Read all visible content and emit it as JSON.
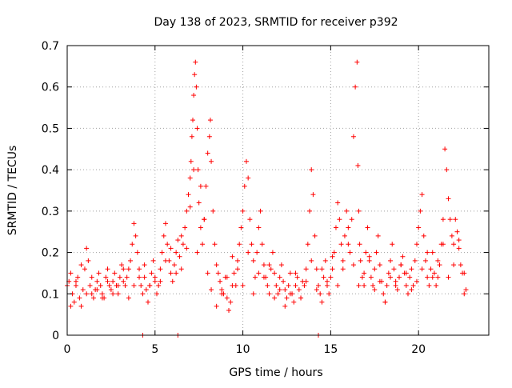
{
  "chart_data": {
    "type": "scatter",
    "title": "Day 138 of 2023, SRMTID for receiver p392",
    "xlabel": "GPS time / hours",
    "ylabel": "SRMTID / TECUs",
    "xlim": [
      0,
      24
    ],
    "ylim": [
      0,
      0.7
    ],
    "x_ticks": [
      0,
      5,
      10,
      15,
      20
    ],
    "y_ticks": [
      0,
      0.1,
      0.2,
      0.3,
      0.4,
      0.5,
      0.6,
      0.7
    ],
    "x_tick_labels": [
      "0",
      "5",
      "10",
      "15",
      "20"
    ],
    "y_tick_labels": [
      "0",
      "0.1",
      "0.2",
      "0.3",
      "0.4",
      "0.5",
      "0.6",
      "0.7"
    ],
    "grid": true,
    "marker": "+",
    "marker_color": "#ff0000",
    "series": [
      {
        "name": "SRMTID p392",
        "x": [
          0.0,
          0.1,
          0.2,
          0.3,
          0.4,
          0.5,
          0.6,
          0.7,
          0.8,
          0.9,
          1.0,
          1.1,
          1.2,
          1.3,
          1.4,
          1.5,
          1.6,
          1.7,
          1.8,
          1.9,
          2.0,
          2.1,
          2.2,
          2.3,
          2.4,
          2.5,
          2.6,
          2.7,
          2.8,
          2.9,
          3.0,
          3.1,
          3.2,
          3.3,
          3.4,
          3.5,
          3.6,
          3.7,
          3.8,
          3.9,
          4.0,
          4.1,
          4.2,
          4.3,
          4.4,
          4.5,
          4.6,
          4.7,
          4.8,
          4.9,
          5.0,
          5.1,
          5.2,
          5.3,
          5.4,
          5.5,
          5.6,
          5.7,
          5.8,
          5.9,
          6.0,
          6.1,
          6.2,
          6.3,
          6.4,
          6.5,
          6.6,
          6.7,
          6.8,
          6.9,
          7.0,
          7.05,
          7.1,
          7.15,
          7.2,
          7.25,
          7.3,
          7.35,
          7.4,
          7.45,
          7.5,
          7.6,
          7.7,
          7.8,
          7.9,
          8.0,
          8.1,
          8.15,
          8.2,
          8.3,
          8.4,
          8.5,
          8.6,
          8.7,
          8.8,
          8.9,
          9.0,
          9.1,
          9.2,
          9.3,
          9.4,
          9.5,
          9.6,
          9.7,
          9.8,
          9.9,
          10.0,
          10.1,
          10.2,
          10.3,
          10.4,
          10.5,
          10.6,
          10.7,
          10.8,
          10.9,
          11.0,
          11.1,
          11.2,
          11.3,
          11.4,
          11.5,
          11.6,
          11.7,
          11.8,
          11.9,
          12.0,
          12.1,
          12.2,
          12.3,
          12.4,
          12.5,
          12.6,
          12.7,
          12.8,
          12.9,
          13.0,
          13.1,
          13.2,
          13.3,
          13.4,
          13.5,
          13.6,
          13.7,
          13.8,
          13.9,
          14.0,
          14.1,
          14.2,
          14.3,
          14.4,
          14.5,
          14.6,
          14.7,
          14.8,
          14.9,
          15.0,
          15.1,
          15.2,
          15.3,
          15.4,
          15.5,
          15.6,
          15.7,
          15.8,
          15.9,
          16.0,
          16.1,
          16.2,
          16.3,
          16.4,
          16.5,
          16.55,
          16.6,
          16.65,
          16.7,
          16.8,
          16.9,
          17.0,
          17.1,
          17.2,
          17.3,
          17.4,
          17.5,
          17.6,
          17.7,
          17.8,
          17.9,
          18.0,
          18.1,
          18.2,
          18.3,
          18.4,
          18.5,
          18.6,
          18.7,
          18.8,
          18.9,
          19.0,
          19.1,
          19.2,
          19.3,
          19.4,
          19.5,
          19.6,
          19.7,
          19.8,
          19.9,
          20.0,
          20.1,
          20.2,
          20.3,
          20.4,
          20.5,
          20.6,
          20.7,
          20.8,
          20.9,
          21.0,
          21.1,
          21.2,
          21.3,
          21.4,
          21.5,
          21.6,
          21.7,
          21.8,
          21.9,
          22.0,
          22.1,
          22.2,
          22.3,
          22.4,
          22.5,
          22.6,
          22.7,
          0.2,
          0.5,
          0.8,
          1.1,
          1.4,
          1.7,
          2.0,
          2.3,
          2.6,
          2.9,
          3.2,
          3.5,
          3.8,
          4.1,
          4.4,
          4.7,
          5.0,
          5.3,
          5.6,
          5.9,
          6.2,
          6.5,
          6.8,
          7.0,
          7.2,
          7.4,
          7.6,
          7.8,
          8.0,
          8.2,
          8.5,
          8.8,
          9.1,
          9.4,
          9.7,
          10.0,
          10.3,
          10.6,
          10.9,
          11.2,
          11.5,
          11.8,
          12.1,
          12.4,
          12.7,
          13.0,
          13.3,
          13.6,
          13.9,
          14.2,
          14.5,
          14.8,
          15.1,
          15.4,
          15.7,
          16.0,
          16.3,
          16.6,
          16.9,
          17.2,
          17.5,
          17.8,
          18.1,
          18.4,
          18.7,
          19.0,
          19.3,
          19.6,
          19.9,
          20.2,
          20.5,
          20.8,
          21.1,
          21.4,
          21.7,
          22.0,
          22.3,
          22.6,
          4.3,
          6.3,
          14.3
        ],
        "y": [
          0.12,
          0.13,
          0.15,
          0.1,
          0.08,
          0.12,
          0.14,
          0.09,
          0.07,
          0.11,
          0.16,
          0.21,
          0.18,
          0.12,
          0.1,
          0.09,
          0.11,
          0.13,
          0.15,
          0.12,
          0.1,
          0.09,
          0.14,
          0.16,
          0.12,
          0.11,
          0.13,
          0.15,
          0.12,
          0.1,
          0.14,
          0.17,
          0.13,
          0.12,
          0.14,
          0.16,
          0.18,
          0.22,
          0.27,
          0.24,
          0.2,
          0.16,
          0.12,
          0.1,
          0.14,
          0.11,
          0.08,
          0.12,
          0.15,
          0.18,
          0.13,
          0.1,
          0.12,
          0.16,
          0.2,
          0.24,
          0.27,
          0.22,
          0.18,
          0.15,
          0.13,
          0.17,
          0.2,
          0.23,
          0.19,
          0.16,
          0.22,
          0.26,
          0.3,
          0.34,
          0.38,
          0.42,
          0.48,
          0.52,
          0.58,
          0.63,
          0.66,
          0.6,
          0.5,
          0.4,
          0.32,
          0.26,
          0.22,
          0.28,
          0.36,
          0.44,
          0.48,
          0.52,
          0.42,
          0.3,
          0.22,
          0.17,
          0.15,
          0.13,
          0.11,
          0.1,
          0.14,
          0.09,
          0.06,
          0.08,
          0.12,
          0.15,
          0.12,
          0.18,
          0.22,
          0.26,
          0.3,
          0.36,
          0.42,
          0.38,
          0.28,
          0.22,
          0.18,
          0.14,
          0.2,
          0.26,
          0.3,
          0.22,
          0.17,
          0.14,
          0.12,
          0.1,
          0.16,
          0.2,
          0.15,
          0.12,
          0.1,
          0.14,
          0.17,
          0.13,
          0.11,
          0.09,
          0.12,
          0.15,
          0.1,
          0.08,
          0.12,
          0.14,
          0.11,
          0.09,
          0.13,
          0.12,
          0.16,
          0.22,
          0.3,
          0.4,
          0.34,
          0.24,
          0.16,
          0.12,
          0.1,
          0.08,
          0.14,
          0.18,
          0.12,
          0.1,
          0.14,
          0.16,
          0.2,
          0.26,
          0.32,
          0.28,
          0.22,
          0.18,
          0.24,
          0.3,
          0.26,
          0.2,
          0.28,
          0.48,
          0.6,
          0.66,
          0.41,
          0.3,
          0.22,
          0.18,
          0.14,
          0.12,
          0.2,
          0.26,
          0.18,
          0.14,
          0.12,
          0.16,
          0.2,
          0.24,
          0.17,
          0.13,
          0.1,
          0.08,
          0.12,
          0.15,
          0.18,
          0.22,
          0.16,
          0.13,
          0.11,
          0.14,
          0.17,
          0.19,
          0.15,
          0.12,
          0.1,
          0.14,
          0.16,
          0.12,
          0.18,
          0.22,
          0.26,
          0.3,
          0.34,
          0.24,
          0.18,
          0.14,
          0.12,
          0.16,
          0.2,
          0.15,
          0.12,
          0.14,
          0.17,
          0.22,
          0.28,
          0.45,
          0.4,
          0.33,
          0.28,
          0.24,
          0.22,
          0.28,
          0.25,
          0.21,
          0.17,
          0.15,
          0.1,
          0.11,
          0.07,
          0.13,
          0.17,
          0.1,
          0.14,
          0.11,
          0.09,
          0.13,
          0.1,
          0.12,
          0.16,
          0.09,
          0.12,
          0.14,
          0.17,
          0.12,
          0.14,
          0.13,
          0.18,
          0.21,
          0.15,
          0.24,
          0.21,
          0.31,
          0.4,
          0.2,
          0.36,
          0.28,
          0.15,
          0.11,
          0.07,
          0.1,
          0.14,
          0.19,
          0.16,
          0.12,
          0.2,
          0.1,
          0.15,
          0.14,
          0.17,
          0.09,
          0.11,
          0.07,
          0.1,
          0.15,
          0.09,
          0.13,
          0.18,
          0.11,
          0.16,
          0.13,
          0.19,
          0.12,
          0.16,
          0.22,
          0.17,
          0.12,
          0.15,
          0.19,
          0.11,
          0.13,
          0.08,
          0.14,
          0.12,
          0.17,
          0.15,
          0.11,
          0.13,
          0.16,
          0.2,
          0.14,
          0.18,
          0.22,
          0.14,
          0.17,
          0.23,
          0.15,
          0.0,
          0.0,
          0.0
        ]
      }
    ]
  }
}
